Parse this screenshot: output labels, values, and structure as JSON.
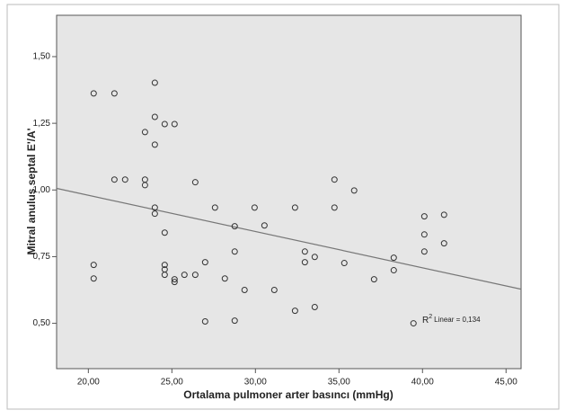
{
  "chart_data": {
    "type": "scatter",
    "x_label": "Ortalama pulmoner arter basıncı (mmHg)",
    "y_label": "Mitral anulus septal E'/A'",
    "xlim": [
      18.1,
      45.9
    ],
    "ylim": [
      0.33,
      1.655
    ],
    "xticks": [
      {
        "value": 20,
        "label": "20,00"
      },
      {
        "value": 25,
        "label": "25,00"
      },
      {
        "value": 30,
        "label": "30,00"
      },
      {
        "value": 35,
        "label": "35,00"
      },
      {
        "value": 40,
        "label": "40,00"
      },
      {
        "value": 45,
        "label": "45,00"
      }
    ],
    "yticks": [
      {
        "value": 0.5,
        "label": "0,50"
      },
      {
        "value": 0.75,
        "label": "0,75"
      },
      {
        "value": 1.0,
        "label": "1,00"
      },
      {
        "value": 1.25,
        "label": "1,25"
      },
      {
        "value": 1.5,
        "label": "1,50"
      }
    ],
    "color": "#333333",
    "fit_line": {
      "x": [
        18.1,
        45.9
      ],
      "y": [
        1.006,
        0.628
      ],
      "color": "#777777"
    },
    "annotation": {
      "base": "R",
      "superscript": "2",
      "text": "Linear = 0,134"
    },
    "x": [
      20.32,
      20.32,
      20.32,
      21.56,
      21.56,
      22.2,
      23.39,
      23.39,
      23.39,
      23.98,
      23.98,
      23.98,
      23.98,
      23.98,
      24.57,
      25.16,
      24.57,
      24.57,
      24.57,
      24.57,
      25.16,
      25.16,
      25.75,
      26.4,
      26.4,
      26.99,
      26.99,
      27.58,
      28.17,
      28.76,
      28.76,
      28.76,
      29.35,
      29.95,
      30.54,
      31.13,
      32.37,
      32.37,
      32.96,
      32.96,
      33.55,
      33.55,
      34.73,
      34.73,
      35.32,
      35.91,
      37.1,
      38.28,
      38.28,
      39.46,
      40.11,
      40.11,
      40.11,
      41.29,
      41.29
    ],
    "values": [
      1.362,
      0.719,
      0.668,
      1.362,
      1.039,
      1.039,
      1.217,
      1.039,
      1.018,
      1.402,
      1.274,
      1.17,
      0.934,
      0.911,
      1.247,
      1.247,
      0.84,
      0.719,
      0.702,
      0.682,
      0.665,
      0.655,
      0.682,
      0.682,
      1.029,
      0.729,
      0.507,
      0.934,
      0.668,
      0.864,
      0.769,
      0.51,
      0.625,
      0.934,
      0.867,
      0.625,
      0.934,
      0.547,
      0.769,
      0.729,
      0.749,
      0.561,
      1.039,
      0.934,
      0.726,
      0.998,
      0.665,
      0.746,
      0.699,
      0.5,
      0.901,
      0.833,
      0.769,
      0.907,
      0.8
    ]
  }
}
